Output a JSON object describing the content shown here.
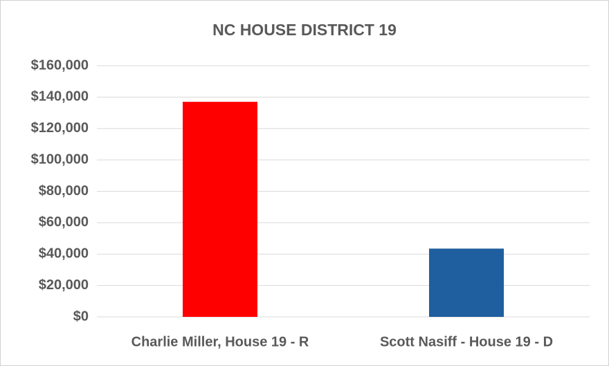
{
  "chart_data": {
    "type": "bar",
    "title": "NC HOUSE DISTRICT 19",
    "categories": [
      "Charlie Miller, House 19 - R",
      "Scott Nasiff - House 19 - D"
    ],
    "values": [
      137000,
      43500
    ],
    "colors": [
      "#ff0000",
      "#1f5f9f"
    ],
    "ylim": [
      0,
      160000
    ],
    "yticks": [
      {
        "value": 0,
        "label": "$0"
      },
      {
        "value": 20000,
        "label": "$20,000"
      },
      {
        "value": 40000,
        "label": "$40,000"
      },
      {
        "value": 60000,
        "label": "$60,000"
      },
      {
        "value": 80000,
        "label": "$80,000"
      },
      {
        "value": 100000,
        "label": "$100,000"
      },
      {
        "value": 120000,
        "label": "$120,000"
      },
      {
        "value": 140000,
        "label": "$140,000"
      },
      {
        "value": 160000,
        "label": "$160,000"
      }
    ],
    "grid": true
  }
}
